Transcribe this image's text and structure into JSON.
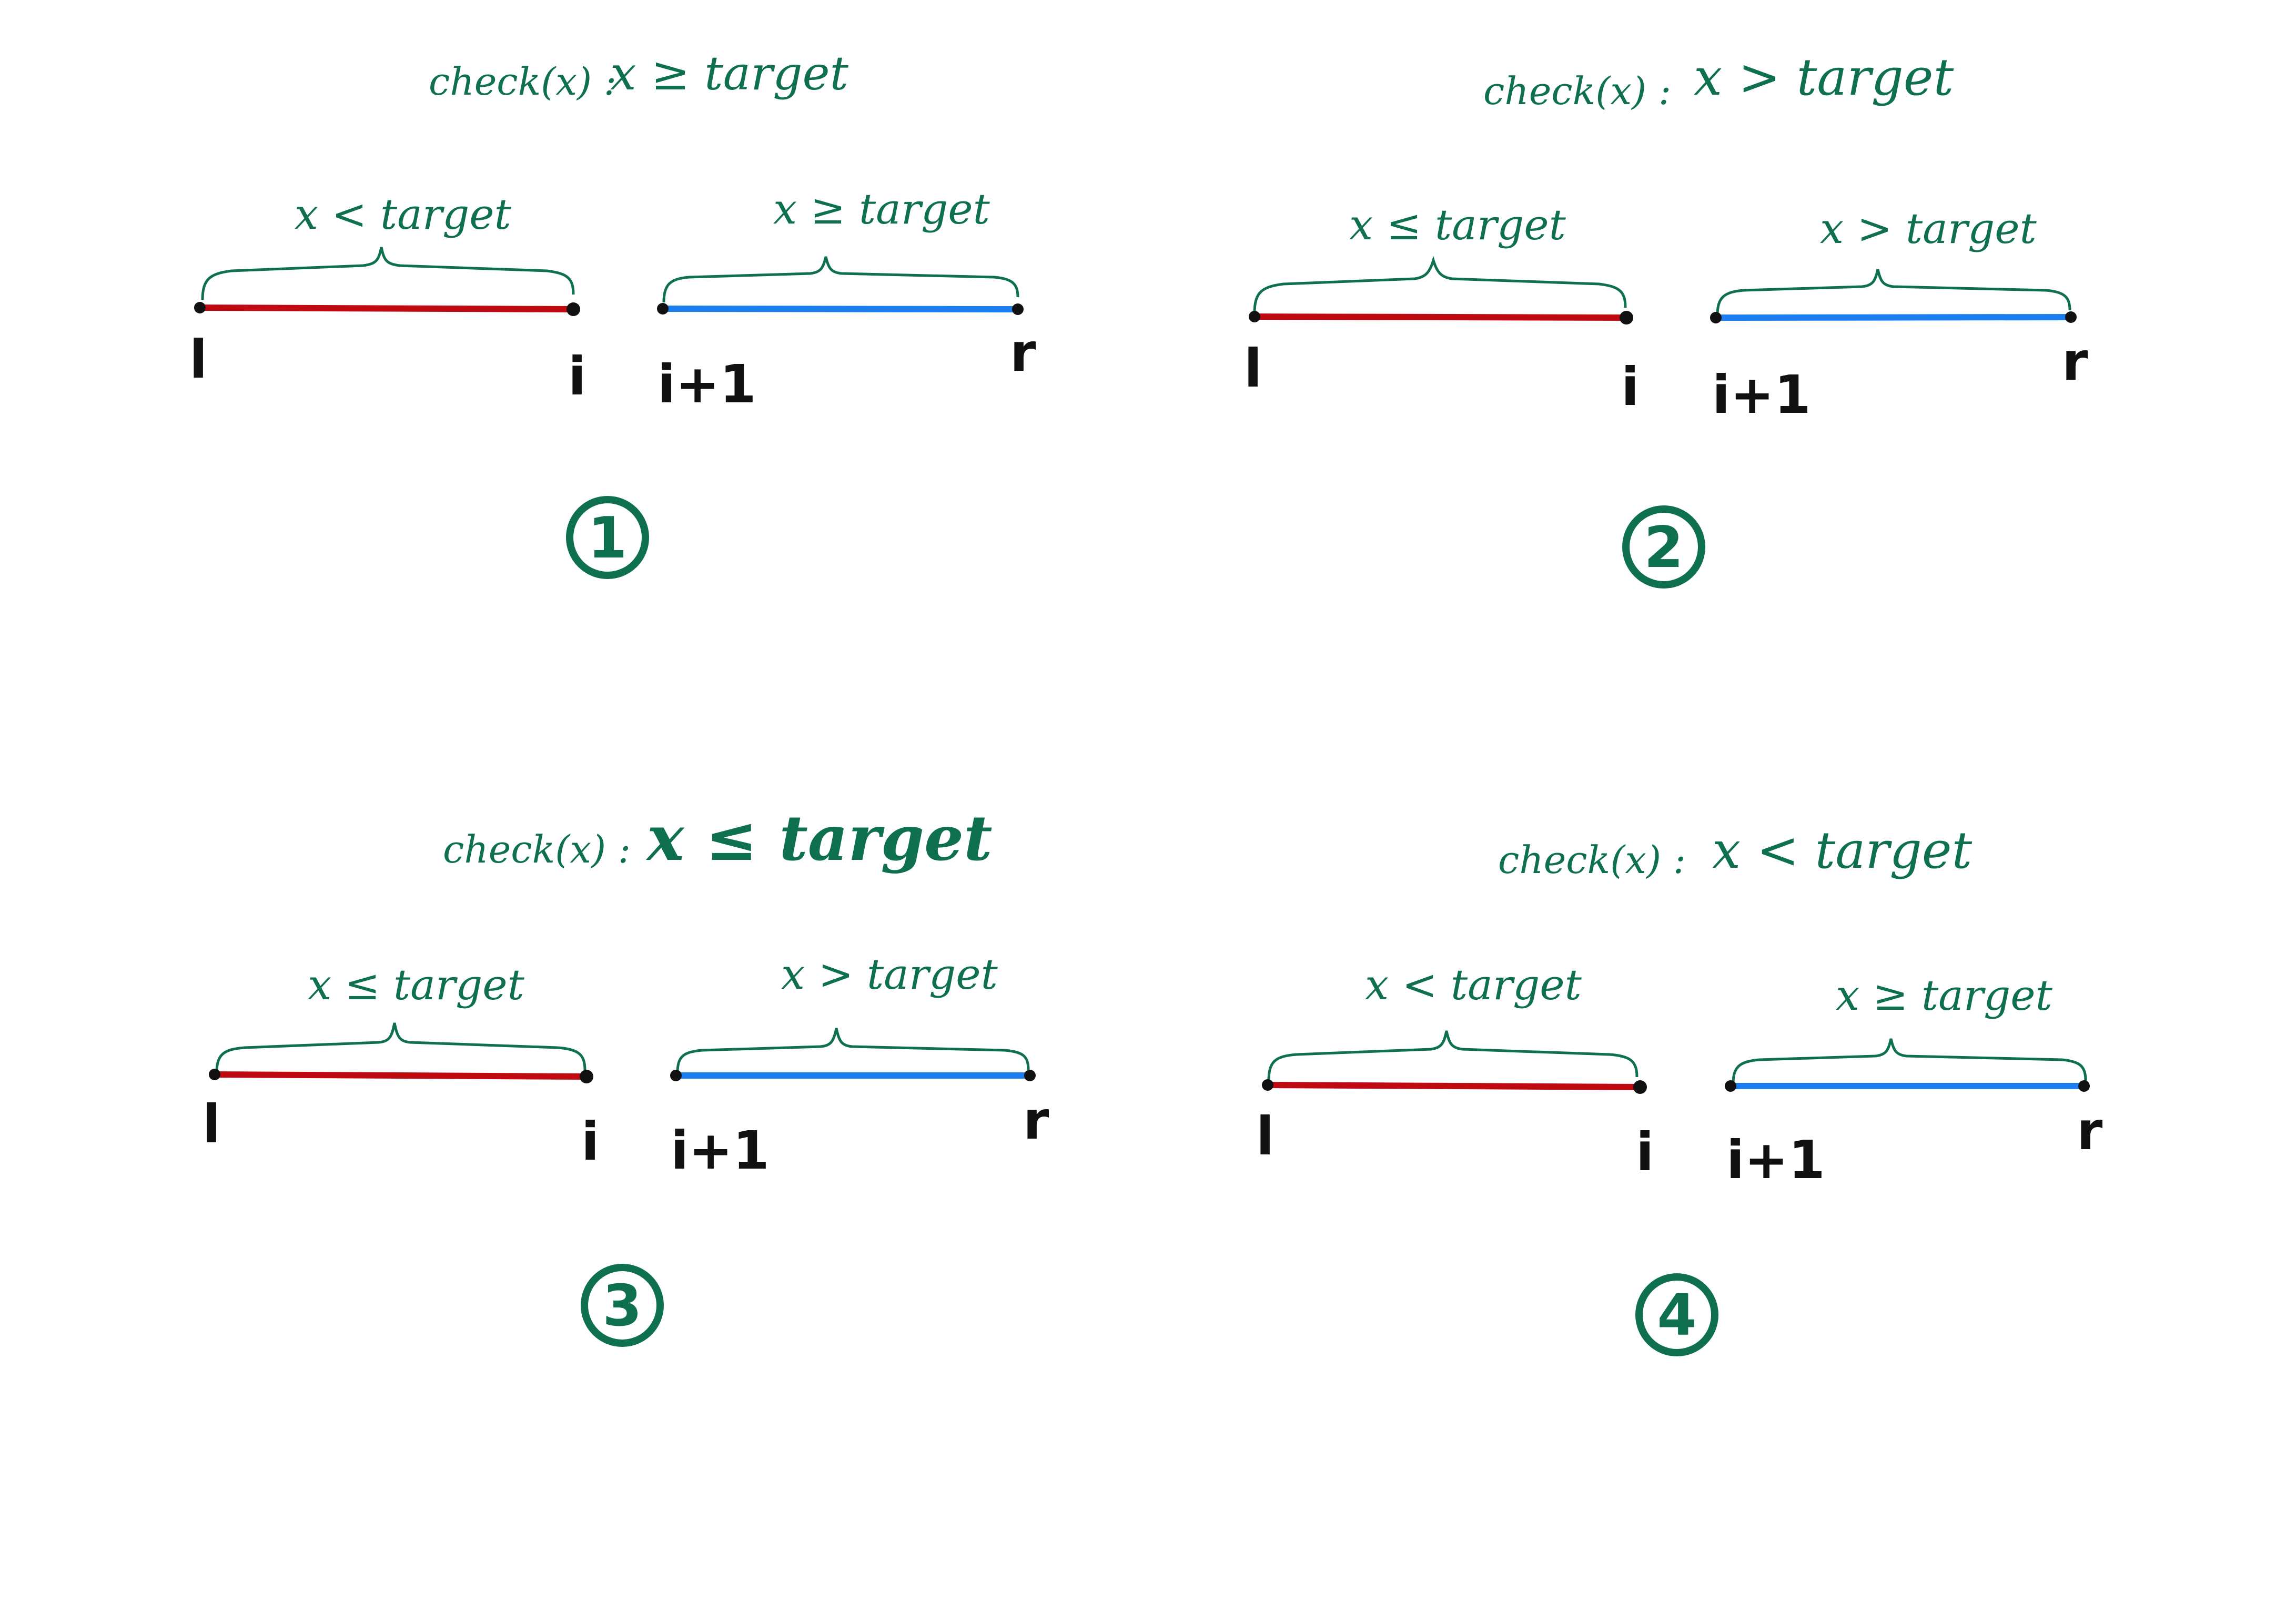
{
  "colors": {
    "ink_green": "#0f7050",
    "red_segment": "#c00a12",
    "blue_segment": "#1a7ef0",
    "endpoint": "#111111"
  },
  "panels": [
    {
      "check_label": "check(x) :",
      "check_condition": "x ≥ target",
      "left_brace_label": "x < target",
      "right_brace_label": "x ≥ target",
      "point_l": "l",
      "point_i": "i",
      "point_i1": "i+1",
      "point_r": "r",
      "number": "1"
    },
    {
      "check_label": "check(x) :",
      "check_condition": "x > target",
      "left_brace_label": "x ≤ target",
      "right_brace_label": "x > target",
      "point_l": "l",
      "point_i": "i",
      "point_i1": "i+1",
      "point_r": "r",
      "number": "2"
    },
    {
      "check_label": "check(x) :",
      "check_condition": "x ≤ target",
      "left_brace_label": "x ≤ target",
      "right_brace_label": "x > target",
      "point_l": "l",
      "point_i": "i",
      "point_i1": "i+1",
      "point_r": "r",
      "number": "3"
    },
    {
      "check_label": "check(x) :",
      "check_condition": "x < target",
      "left_brace_label": "x < target",
      "right_brace_label": "x ≥ target",
      "point_l": "l",
      "point_i": "i",
      "point_i1": "i+1",
      "point_r": "r",
      "number": "4"
    }
  ]
}
